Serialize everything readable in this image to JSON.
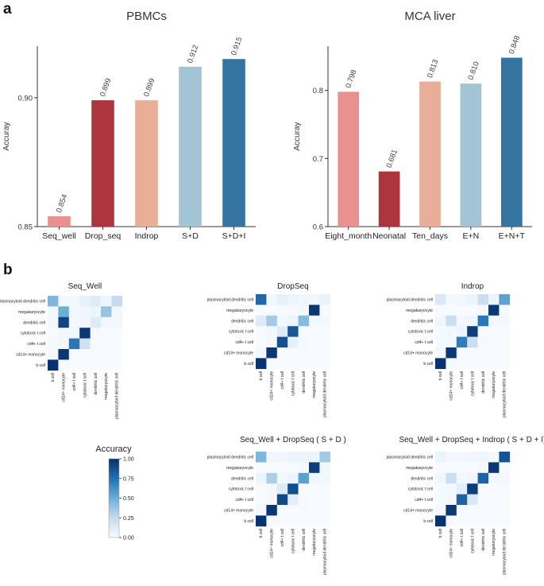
{
  "panels": {
    "a": "a",
    "b": "b"
  },
  "chart_data": [
    {
      "type": "bar",
      "title": "PBMCs",
      "xlabel": "",
      "ylabel": "Accuray",
      "ylim": [
        0.85,
        0.92
      ],
      "yticks": [
        0.85,
        0.9
      ],
      "ytick_labels": [
        "0.85",
        "0.90"
      ],
      "categories": [
        "Seq_well",
        "Drop_seq",
        "Indrop",
        "S+D",
        "S+D+I"
      ],
      "values": [
        0.854,
        0.899,
        0.899,
        0.912,
        0.915
      ],
      "value_labels": [
        "0.854",
        "0.899",
        "0.899",
        "0.912",
        "0.915"
      ],
      "colors": [
        "#e8918f",
        "#ab363b",
        "#e8ae97",
        "#a2c4d5",
        "#3573a1"
      ]
    },
    {
      "type": "bar",
      "title": "MCA liver",
      "xlabel": "",
      "ylabel": "Accuray",
      "ylim": [
        0.6,
        0.865
      ],
      "yticks": [
        0.6,
        0.7,
        0.8
      ],
      "ytick_labels": [
        "0.6",
        "0.7",
        "0.8"
      ],
      "categories": [
        "Eight_month",
        "Neonatal",
        "Ten_days",
        "E+N",
        "E+N+T"
      ],
      "values": [
        0.798,
        0.681,
        0.813,
        0.81,
        0.848
      ],
      "value_labels": [
        "0.798",
        "0.681",
        "0.813",
        "0.810",
        "0.848"
      ],
      "colors": [
        "#e8918f",
        "#ab363b",
        "#e8ae97",
        "#a2c4d5",
        "#3573a1"
      ]
    },
    {
      "type": "heatmap",
      "row_labels": [
        "plasmacytoid dendritic cell",
        "megakaryocyte",
        "dendritic cell",
        "cytotoxic t cell",
        "cd4+ t cell",
        "cd14+ monocyte",
        "b cell"
      ],
      "col_labels": [
        "b cell",
        "cd14+ monocyte",
        "cd4+ t cell",
        "cytotoxic t cell",
        "dendritic cell",
        "megakaryocyte",
        "plasmacytoid dendritic cell"
      ],
      "vmin": 0,
      "vmax": 1,
      "panels": [
        {
          "title": "Seq_Well",
          "values": [
            [
              0.45,
              0.03,
              0.02,
              0.08,
              0.12,
              0.05,
              0.25
            ],
            [
              0.02,
              0.5,
              0.03,
              0.04,
              0.05,
              0.38,
              0.02
            ],
            [
              0.02,
              0.92,
              0.02,
              0.03,
              0.12,
              0.03,
              0.02
            ],
            [
              0.01,
              0.02,
              0.03,
              0.97,
              0.01,
              0.01,
              0.0
            ],
            [
              0.01,
              0.02,
              0.72,
              0.2,
              0.01,
              0.0,
              0.0
            ],
            [
              0.02,
              0.97,
              0.0,
              0.0,
              0.01,
              0.0,
              0.0
            ],
            [
              0.99,
              0.01,
              0.0,
              0.0,
              0.0,
              0.0,
              0.0
            ]
          ]
        },
        {
          "title": "DropSeq",
          "values": [
            [
              0.78,
              0.03,
              0.08,
              0.05,
              0.04,
              0.03,
              0.07
            ],
            [
              0.0,
              0.0,
              0.0,
              0.01,
              0.02,
              0.97,
              0.0
            ],
            [
              0.12,
              0.35,
              0.02,
              0.05,
              0.42,
              0.02,
              0.02
            ],
            [
              0.01,
              0.02,
              0.12,
              0.85,
              0.0,
              0.0,
              0.0
            ],
            [
              0.01,
              0.02,
              0.88,
              0.08,
              0.01,
              0.0,
              0.0
            ],
            [
              0.02,
              0.97,
              0.0,
              0.0,
              0.01,
              0.0,
              0.0
            ],
            [
              0.99,
              0.01,
              0.0,
              0.0,
              0.0,
              0.0,
              0.0
            ]
          ]
        },
        {
          "title": "Indrop",
          "values": [
            [
              0.15,
              0.02,
              0.03,
              0.06,
              0.22,
              0.05,
              0.55
            ],
            [
              0.0,
              0.0,
              0.0,
              0.0,
              0.02,
              0.97,
              0.01
            ],
            [
              0.04,
              0.22,
              0.02,
              0.04,
              0.72,
              0.02,
              0.02
            ],
            [
              0.01,
              0.02,
              0.05,
              0.95,
              0.0,
              0.0,
              0.0
            ],
            [
              0.01,
              0.02,
              0.7,
              0.22,
              0.01,
              0.0,
              0.0
            ],
            [
              0.02,
              0.97,
              0.0,
              0.0,
              0.01,
              0.0,
              0.0
            ],
            [
              0.99,
              0.01,
              0.0,
              0.0,
              0.0,
              0.0,
              0.0
            ]
          ]
        },
        {
          "title": "Seq_Well + DropSeq ( S + D )",
          "values": [
            [
              0.45,
              0.03,
              0.02,
              0.06,
              0.05,
              0.05,
              0.35
            ],
            [
              0.0,
              0.0,
              0.0,
              0.01,
              0.02,
              0.95,
              0.02
            ],
            [
              0.05,
              0.32,
              0.02,
              0.05,
              0.55,
              0.02,
              0.02
            ],
            [
              0.01,
              0.02,
              0.12,
              0.88,
              0.0,
              0.0,
              0.0
            ],
            [
              0.01,
              0.02,
              0.9,
              0.1,
              0.01,
              0.0,
              0.0
            ],
            [
              0.02,
              0.97,
              0.0,
              0.0,
              0.01,
              0.0,
              0.0
            ],
            [
              0.99,
              0.01,
              0.0,
              0.0,
              0.0,
              0.0,
              0.0
            ]
          ]
        },
        {
          "title": "Seq_Well + DropSeq + Indrop ( S + D + I)",
          "values": [
            [
              0.06,
              0.02,
              0.02,
              0.03,
              0.04,
              0.02,
              0.86
            ],
            [
              0.0,
              0.0,
              0.0,
              0.0,
              0.02,
              0.97,
              0.01
            ],
            [
              0.04,
              0.22,
              0.02,
              0.04,
              0.8,
              0.02,
              0.02
            ],
            [
              0.01,
              0.02,
              0.1,
              0.95,
              0.0,
              0.0,
              0.0
            ],
            [
              0.01,
              0.02,
              0.8,
              0.15,
              0.01,
              0.0,
              0.0
            ],
            [
              0.02,
              0.97,
              0.0,
              0.0,
              0.01,
              0.0,
              0.0
            ],
            [
              0.99,
              0.01,
              0.0,
              0.0,
              0.0,
              0.0,
              0.0
            ]
          ]
        }
      ],
      "colorbar": {
        "title": "Accuracy",
        "ticks": [
          0.0,
          0.25,
          0.5,
          0.75,
          1.0
        ],
        "tick_labels": [
          "0.00",
          "0.25",
          "0.50",
          "0.75",
          "1.00"
        ]
      }
    }
  ]
}
